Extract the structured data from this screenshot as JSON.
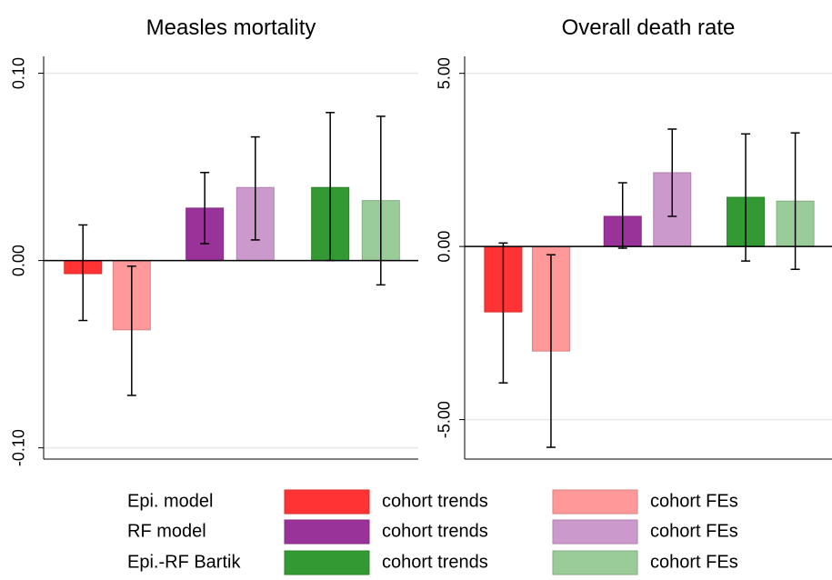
{
  "chart_data": [
    {
      "type": "bar",
      "title": "Measles mortality",
      "ylim": [
        -0.106,
        0.109
      ],
      "yticks": [
        {
          "value": -0.1,
          "label": "-0.10"
        },
        {
          "value": 0,
          "label": "0.00"
        },
        {
          "value": 0.1,
          "label": "0.10"
        }
      ],
      "grid": true,
      "series": [
        {
          "name": "cohort trends",
          "color": "#ff3333",
          "values": [
            -0.007
          ],
          "ci_low": [
            -0.032
          ],
          "ci_high": [
            0.019
          ]
        },
        {
          "name": "cohort FEs",
          "color": "#ff9999",
          "values": [
            -0.037
          ],
          "ci_low": [
            -0.072
          ],
          "ci_high": [
            -0.003
          ]
        },
        {
          "name": "cohort trends",
          "color": "#993399",
          "values": [
            0.028
          ],
          "ci_low": [
            0.009
          ],
          "ci_high": [
            0.047
          ]
        },
        {
          "name": "cohort FEs",
          "color": "#cc99cc",
          "values": [
            0.039
          ],
          "ci_low": [
            0.011
          ],
          "ci_high": [
            0.066
          ]
        },
        {
          "name": "cohort trends",
          "color": "#339933",
          "values": [
            0.039
          ],
          "ci_low": [
            0.0
          ],
          "ci_high": [
            0.079
          ]
        },
        {
          "name": "cohort FEs",
          "color": "#99cc99",
          "values": [
            0.032
          ],
          "ci_low": [
            -0.013
          ],
          "ci_high": [
            0.077
          ]
        }
      ]
    },
    {
      "type": "bar",
      "title": "Overall death rate",
      "ylim": [
        -6.14,
        5.49
      ],
      "yticks": [
        {
          "value": -5,
          "label": "-5.00"
        },
        {
          "value": 0,
          "label": "0.00"
        },
        {
          "value": 5,
          "label": "5.00"
        }
      ],
      "grid": true,
      "series": [
        {
          "name": "cohort trends",
          "color": "#ff3333",
          "values": [
            -1.89
          ],
          "ci_low": [
            -3.94
          ],
          "ci_high": [
            0.1
          ]
        },
        {
          "name": "cohort FEs",
          "color": "#ff9999",
          "values": [
            -3.02
          ],
          "ci_low": [
            -5.8
          ],
          "ci_high": [
            -0.24
          ]
        },
        {
          "name": "cohort trends",
          "color": "#993399",
          "values": [
            0.87
          ],
          "ci_low": [
            -0.05
          ],
          "ci_high": [
            1.84
          ]
        },
        {
          "name": "cohort FEs",
          "color": "#cc99cc",
          "values": [
            2.13
          ],
          "ci_low": [
            0.87
          ],
          "ci_high": [
            3.39
          ]
        },
        {
          "name": "cohort trends",
          "color": "#339933",
          "values": [
            1.42
          ],
          "ci_low": [
            -0.42
          ],
          "ci_high": [
            3.25
          ]
        },
        {
          "name": "cohort FEs",
          "color": "#99cc99",
          "values": [
            1.31
          ],
          "ci_low": [
            -0.66
          ],
          "ci_high": [
            3.28
          ]
        }
      ]
    }
  ],
  "legend_groups": [
    "Epi. model",
    "RF model",
    "Epi.-RF Bartik"
  ]
}
